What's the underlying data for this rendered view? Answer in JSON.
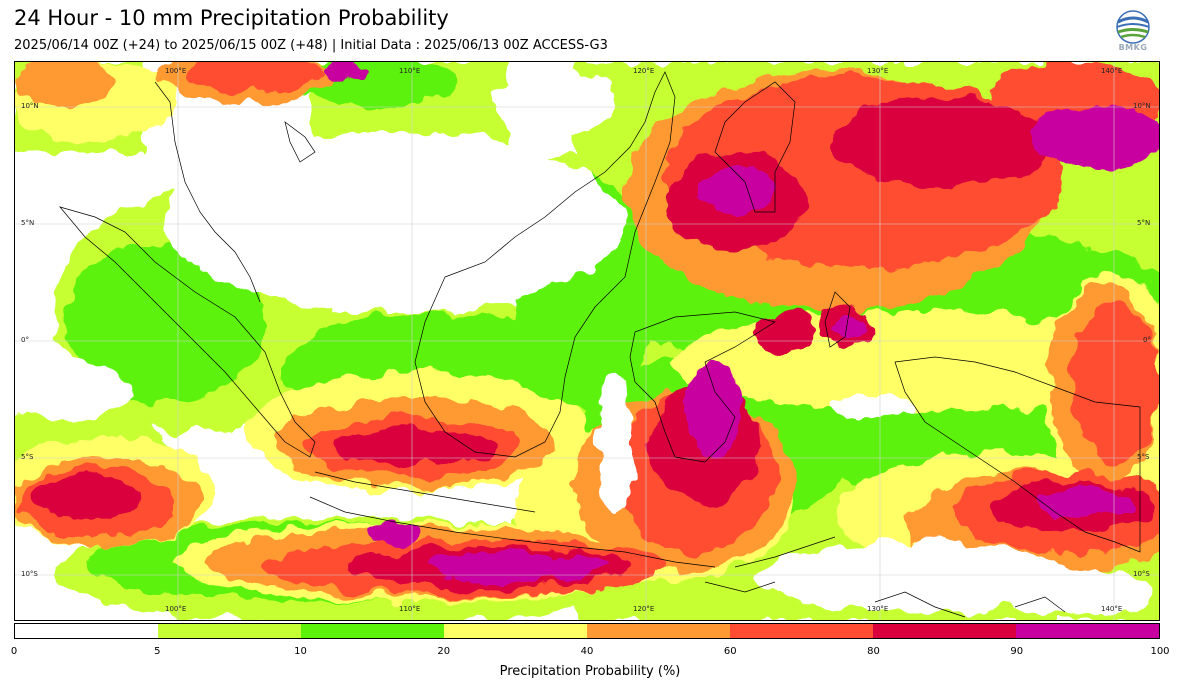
{
  "title": "24 Hour - 10 mm Precipitation Probability",
  "subtitle": "2025/06/14 00Z (+24) to 2025/06/15 00Z (+48) | Initial Data : 2025/06/13 00Z ACCESS-G3",
  "logo": {
    "icon": "bmkg-logo-icon",
    "text": "BMKG"
  },
  "map": {
    "lon_labels_top": [
      "100°E",
      "110°E",
      "120°E",
      "130°E",
      "140°E"
    ],
    "lon_labels_bottom": [
      "100°E",
      "110°E",
      "120°E",
      "130°E",
      "140°E"
    ],
    "lat_labels_left": [
      "10°N",
      "5°N",
      "0°",
      "5°S",
      "10°S"
    ],
    "lat_labels_right": [
      "10°N",
      "5°N",
      "0°",
      "5°S",
      "10°S"
    ]
  },
  "colorbar": {
    "label": "Precipitation Probability (%)",
    "ticks": [
      "0",
      "5",
      "10",
      "20",
      "40",
      "60",
      "80",
      "90",
      "100"
    ],
    "colors": [
      "#ffffff",
      "#c6ff33",
      "#5df20a",
      "#ffff66",
      "#ff9933",
      "#ff4d33",
      "#d9003d",
      "#c800a0"
    ]
  }
}
